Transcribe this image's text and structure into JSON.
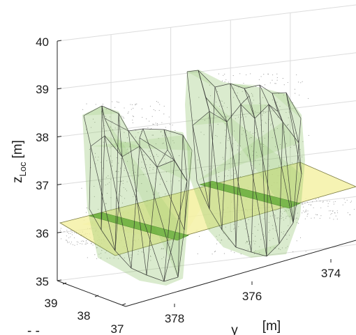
{
  "chart_data": {
    "type": "scatter",
    "subtype": "3d-point-cloud-with-fitted-surfaces",
    "title": "",
    "zlabel_base": "z",
    "zlabel_sub": "Loc",
    "zlabel_unit": "[m]",
    "ylabel": "y",
    "ylabel_unit": "[m]",
    "xlabel_partial": "- -",
    "z_ticks": [
      "35",
      "36",
      "37",
      "38",
      "39",
      "40"
    ],
    "y_ticks": [
      "374",
      "376",
      "378"
    ],
    "x_ticks": [
      "39",
      "38",
      "37"
    ],
    "zlim": [
      35,
      40
    ],
    "ylim": [
      373,
      379
    ],
    "xlim": [
      36.8,
      39.2
    ],
    "grid": true,
    "colors": {
      "hull_fill": "#8cc266",
      "hull_edge": "#2a2a2a",
      "plane_fill": "#f4f0a0",
      "strip_fill": "#5fa82e",
      "points": "#333333"
    }
  }
}
